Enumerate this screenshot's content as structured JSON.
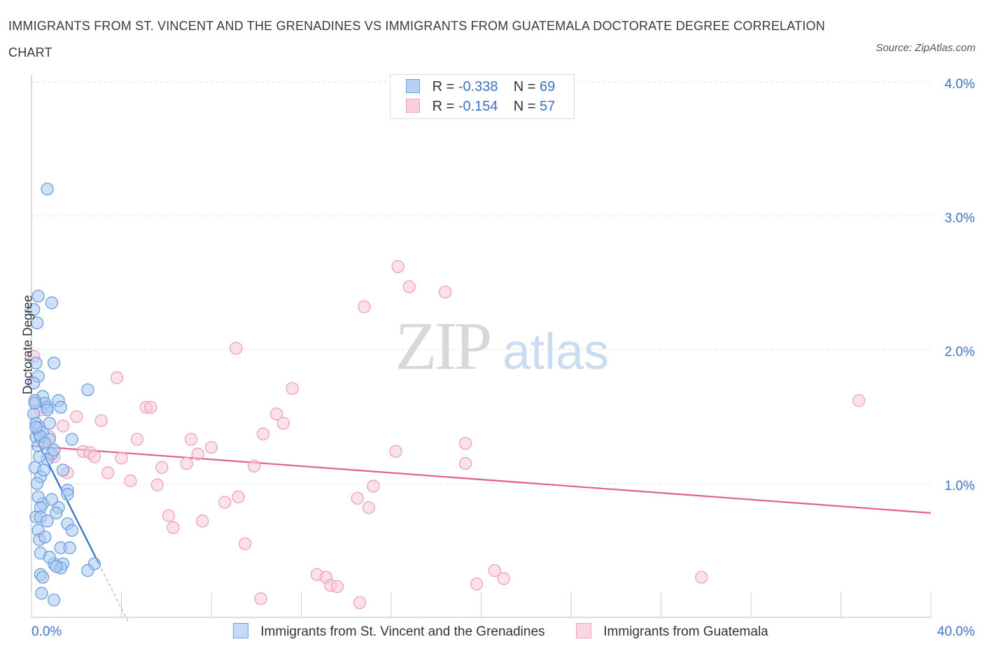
{
  "title": "IMMIGRANTS FROM ST. VINCENT AND THE GRENADINES VS IMMIGRANTS FROM GUATEMALA DOCTORATE DEGREE CORRELATION CHART",
  "source": "Source: ZipAtlas.com",
  "watermark": {
    "zip": "ZIP",
    "atlas": "atlas"
  },
  "legend": {
    "rows": [
      {
        "r_label": "R =",
        "r_value": "-0.338",
        "n_label": "N =",
        "n_value": "69"
      },
      {
        "r_label": "R =",
        "r_value": "-0.154",
        "n_label": "N =",
        "n_value": "57"
      }
    ]
  },
  "chart_data": {
    "type": "scatter",
    "ylabel": "Doctorate Degree",
    "xlim": [
      0,
      40
    ],
    "ylim": [
      0,
      4.0
    ],
    "x_tick_labels": [
      "0.0%",
      "40.0%"
    ],
    "y_ticks": [
      1.0,
      2.0,
      3.0,
      4.0
    ],
    "y_tick_labels": [
      "1.0%",
      "2.0%",
      "3.0%",
      "4.0%"
    ],
    "grid": true,
    "legend_position": "bottom",
    "series": [
      {
        "name": "Immigrants from St. Vincent and the Grenadines",
        "color": "#6b9fe0",
        "fill": "#aac8f0",
        "trend_color": "#2f6fc9",
        "trend": {
          "x0": 0.0,
          "y0": 1.4,
          "x1": 3.0,
          "y1": 0.4,
          "dash_to_x": 4.3
        },
        "points": [
          [
            0.7,
            3.2
          ],
          [
            0.3,
            2.4
          ],
          [
            0.9,
            2.35
          ],
          [
            0.1,
            2.3
          ],
          [
            0.25,
            2.2
          ],
          [
            1.0,
            1.9
          ],
          [
            0.2,
            1.9
          ],
          [
            0.3,
            1.8
          ],
          [
            2.5,
            1.7
          ],
          [
            0.1,
            1.75
          ],
          [
            0.5,
            1.65
          ],
          [
            0.15,
            1.62
          ],
          [
            0.6,
            1.6
          ],
          [
            1.2,
            1.62
          ],
          [
            1.3,
            1.57
          ],
          [
            0.7,
            1.57
          ],
          [
            0.1,
            1.52
          ],
          [
            0.2,
            1.45
          ],
          [
            0.35,
            1.42
          ],
          [
            0.5,
            1.38
          ],
          [
            0.2,
            1.35
          ],
          [
            0.4,
            1.35
          ],
          [
            0.8,
            1.33
          ],
          [
            1.8,
            1.33
          ],
          [
            0.3,
            1.28
          ],
          [
            0.9,
            1.22
          ],
          [
            0.7,
            1.18
          ],
          [
            1.4,
            1.1
          ],
          [
            0.15,
            1.12
          ],
          [
            0.4,
            1.05
          ],
          [
            1.6,
            0.95
          ],
          [
            1.6,
            0.92
          ],
          [
            0.5,
            0.85
          ],
          [
            0.4,
            0.82
          ],
          [
            1.2,
            0.82
          ],
          [
            0.2,
            0.75
          ],
          [
            0.4,
            0.75
          ],
          [
            1.1,
            0.78
          ],
          [
            0.7,
            0.72
          ],
          [
            1.6,
            0.7
          ],
          [
            0.3,
            0.65
          ],
          [
            1.8,
            0.65
          ],
          [
            0.35,
            0.58
          ],
          [
            1.3,
            0.52
          ],
          [
            1.7,
            0.52
          ],
          [
            0.4,
            0.48
          ],
          [
            1.0,
            0.4
          ],
          [
            1.4,
            0.4
          ],
          [
            2.8,
            0.4
          ],
          [
            1.3,
            0.37
          ],
          [
            2.5,
            0.35
          ],
          [
            0.4,
            0.32
          ],
          [
            1.1,
            0.38
          ],
          [
            0.45,
            0.18
          ],
          [
            1.0,
            0.13
          ],
          [
            0.2,
            1.42
          ],
          [
            0.6,
            1.3
          ],
          [
            0.35,
            1.2
          ],
          [
            0.7,
            1.55
          ],
          [
            0.15,
            1.6
          ],
          [
            0.8,
            1.45
          ],
          [
            1.0,
            1.25
          ],
          [
            0.55,
            1.1
          ],
          [
            0.25,
            1.0
          ],
          [
            0.9,
            0.88
          ],
          [
            0.3,
            0.9
          ],
          [
            0.6,
            0.6
          ],
          [
            0.8,
            0.45
          ],
          [
            0.5,
            0.3
          ]
        ]
      },
      {
        "name": "Immigrants from Guatemala",
        "color": "#f0a0bc",
        "fill": "#f8c8d8",
        "trend_color": "#e0608a",
        "trend": {
          "x0": 0.0,
          "y0": 1.28,
          "x1": 40.0,
          "y1": 0.78
        },
        "points": [
          [
            0.1,
            1.95
          ],
          [
            16.3,
            2.62
          ],
          [
            16.8,
            2.47
          ],
          [
            18.4,
            2.43
          ],
          [
            14.8,
            2.32
          ],
          [
            9.1,
            2.01
          ],
          [
            3.8,
            1.79
          ],
          [
            11.6,
            1.71
          ],
          [
            36.8,
            1.62
          ],
          [
            5.1,
            1.57
          ],
          [
            5.3,
            1.57
          ],
          [
            10.9,
            1.52
          ],
          [
            2.0,
            1.5
          ],
          [
            3.1,
            1.47
          ],
          [
            11.2,
            1.45
          ],
          [
            1.4,
            1.43
          ],
          [
            10.3,
            1.37
          ],
          [
            0.8,
            1.35
          ],
          [
            4.7,
            1.33
          ],
          [
            7.1,
            1.33
          ],
          [
            19.3,
            1.3
          ],
          [
            8.0,
            1.27
          ],
          [
            2.3,
            1.24
          ],
          [
            2.6,
            1.23
          ],
          [
            16.2,
            1.24
          ],
          [
            7.4,
            1.22
          ],
          [
            2.8,
            1.2
          ],
          [
            4.0,
            1.19
          ],
          [
            6.9,
            1.15
          ],
          [
            19.3,
            1.15
          ],
          [
            5.8,
            1.12
          ],
          [
            9.9,
            1.13
          ],
          [
            3.4,
            1.08
          ],
          [
            1.6,
            1.08
          ],
          [
            4.4,
            1.02
          ],
          [
            5.6,
            0.99
          ],
          [
            15.2,
            0.98
          ],
          [
            9.2,
            0.9
          ],
          [
            14.5,
            0.89
          ],
          [
            8.6,
            0.86
          ],
          [
            15.0,
            0.82
          ],
          [
            6.1,
            0.76
          ],
          [
            7.6,
            0.72
          ],
          [
            6.3,
            0.67
          ],
          [
            9.5,
            0.55
          ],
          [
            12.7,
            0.32
          ],
          [
            20.6,
            0.35
          ],
          [
            13.1,
            0.3
          ],
          [
            21.0,
            0.29
          ],
          [
            13.3,
            0.24
          ],
          [
            13.6,
            0.23
          ],
          [
            19.8,
            0.25
          ],
          [
            29.8,
            0.3
          ],
          [
            10.2,
            0.14
          ],
          [
            14.6,
            0.11
          ],
          [
            1.0,
            1.2
          ],
          [
            0.4,
            1.55
          ]
        ]
      }
    ]
  }
}
